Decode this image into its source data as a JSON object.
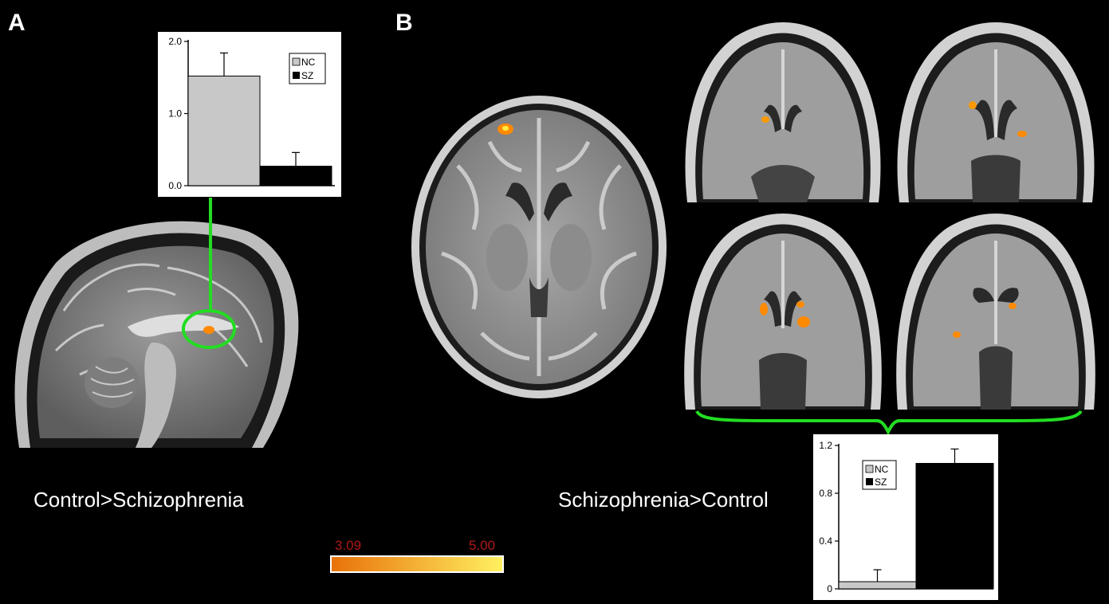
{
  "panels": {
    "a": {
      "letter": "A",
      "caption": "Control>Schizophrenia"
    },
    "b": {
      "letter": "B",
      "caption": "Schizophrenia>Control"
    }
  },
  "colorbar": {
    "min_label": "3.09",
    "max_label": "5.00",
    "min_color": "#e8720a",
    "max_color": "#fff060"
  },
  "colors": {
    "highlight": "#22dd22",
    "nc_bar": "#c8c8c8",
    "sz_bar": "#000000",
    "activation": "#ff8a00"
  },
  "chart_data": [
    {
      "type": "bar",
      "categories": [
        "NC",
        "SZ"
      ],
      "values": [
        1.52,
        0.27
      ],
      "errors": [
        0.32,
        0.19
      ],
      "ylim": [
        0,
        2.0
      ],
      "yticks": [
        "0.0",
        "1.0",
        "2.0"
      ],
      "legend": [
        "NC",
        "SZ"
      ],
      "legend_position": "top-right"
    },
    {
      "type": "bar",
      "categories": [
        "NC",
        "SZ"
      ],
      "values": [
        0.06,
        1.05
      ],
      "errors": [
        0.1,
        0.12
      ],
      "ylim": [
        0,
        1.2
      ],
      "yticks": [
        "0",
        "0.4",
        "0.8",
        "1.2"
      ],
      "legend": [
        "NC",
        "SZ"
      ],
      "legend_position": "top-left"
    }
  ]
}
